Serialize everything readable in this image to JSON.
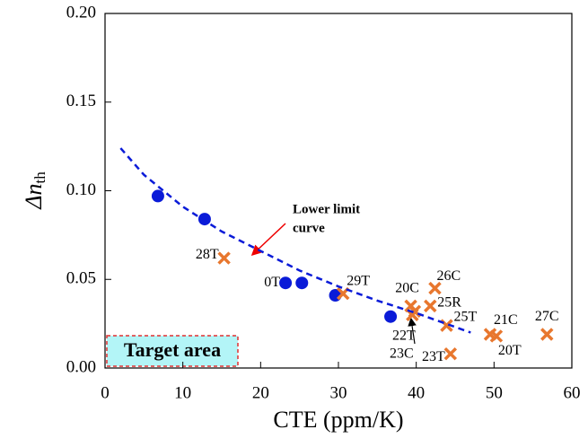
{
  "chart_data": {
    "type": "scatter",
    "xlabel": "CTE (ppm/K)",
    "ylabel": "Δn",
    "ylabel_sub": "th",
    "xlim": [
      0,
      60
    ],
    "xticks": [
      0,
      10,
      20,
      30,
      40,
      50,
      60
    ],
    "ylim": [
      0,
      0.2
    ],
    "yticks": [
      {
        "value": 0,
        "label": "0.00"
      },
      {
        "value": 0.05,
        "label": "0.05"
      },
      {
        "value": 0.1,
        "label": "0.10"
      },
      {
        "value": 0.15,
        "label": "0.15"
      },
      {
        "value": 0.2,
        "label": "0.20"
      }
    ],
    "series": [
      {
        "marker": "circle",
        "color": "#0a1bd8",
        "x": [
          6.8,
          12.8,
          23.2,
          25.3,
          29.6,
          36.7
        ],
        "values": [
          0.097,
          0.084,
          0.048,
          0.048,
          0.041,
          0.029
        ],
        "labels": [
          null,
          null,
          "0T",
          null,
          null,
          null
        ]
      },
      {
        "marker": "cross",
        "color": "#e8772e",
        "x": [
          15.3,
          30.6,
          39.3,
          39.8,
          39.5,
          42.4,
          41.8,
          43.9,
          44.4,
          49.5,
          50.3,
          56.8
        ],
        "values": [
          0.062,
          0.042,
          0.035,
          0.032,
          0.03,
          0.045,
          0.035,
          0.024,
          0.008,
          0.019,
          0.018,
          0.019
        ],
        "labels": [
          "28T",
          "29T",
          "20C",
          "22T",
          "23C",
          "26C",
          "25R",
          "25T",
          "23T",
          "21C",
          "20T",
          "27C"
        ]
      },
      {
        "marker": "dashed-line",
        "color": "#0a1bd8",
        "x": [
          2,
          5,
          10,
          15,
          20,
          25,
          30,
          35,
          40,
          47
        ],
        "values": [
          0.124,
          0.109,
          0.091,
          0.077,
          0.066,
          0.055,
          0.046,
          0.038,
          0.031,
          0.02
        ],
        "labels": []
      }
    ],
    "annotations": {
      "curve_note": [
        "Lower limit",
        "curve"
      ],
      "target": "Target area"
    }
  }
}
